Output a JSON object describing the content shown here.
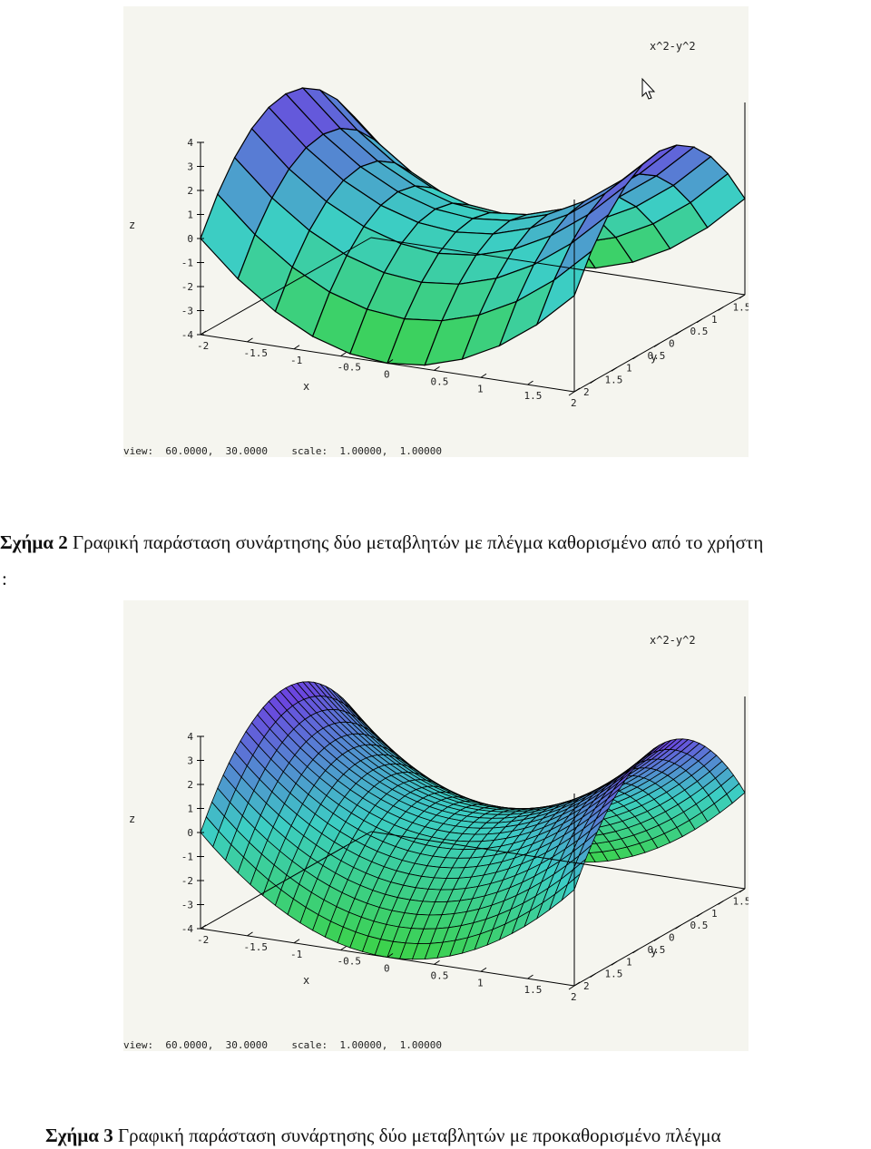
{
  "figures": [
    {
      "legend": "x^2-y^2",
      "zlabel": "z",
      "xlabel": "x",
      "ylabel": "y",
      "ztick_labels": [
        "4",
        "3",
        "2",
        "1",
        "0",
        "-1",
        "-2",
        "-3",
        "-4"
      ],
      "xtick_labels": [
        "-2",
        "-1.5",
        "-1",
        "-0.5",
        "0",
        "0.5",
        "1",
        "1.5",
        "2"
      ],
      "ytick_labels": [
        "2",
        "1.5",
        "1",
        "0.5",
        "0",
        "0.5",
        "1",
        "1.5",
        "2"
      ],
      "status": "view:  60.0000,  30.0000    scale:  1.00000,  1.00000",
      "grid_count": 11,
      "show_cursor": true
    },
    {
      "legend": "x^2-y^2",
      "zlabel": "z",
      "xlabel": "x",
      "ylabel": "y",
      "ztick_labels": [
        "4",
        "3",
        "2",
        "1",
        "0",
        "-1",
        "-2",
        "-3",
        "-4"
      ],
      "xtick_labels": [
        "-2",
        "-1.5",
        "-1",
        "-0.5",
        "0",
        "0.5",
        "1",
        "1.5",
        "2"
      ],
      "ytick_labels": [
        "2",
        "1.5",
        "1",
        "0.5",
        "0",
        "0.5",
        "1",
        "1.5",
        "2"
      ],
      "status": "view:  60.0000,  30.0000    scale:  1.00000,  1.00000",
      "grid_count": 31,
      "show_cursor": false
    }
  ],
  "captions": {
    "fig2_label": "Σχήμα 2",
    "fig2_text": " Γραφική παράσταση συνάρτησης δύο μεταβλητών με πλέγμα καθορισμένο από το χρήστη",
    "colon": ":",
    "fig3_label": "Σχήμα 3",
    "fig3_text": " Γραφική παράσταση συνάρτησης δύο μεταβλητών με προκαθορισμένο πλέγμα"
  },
  "chart_data": [
    {
      "type": "surface",
      "function": "x^2-y^2",
      "x_range": [
        -2,
        2
      ],
      "y_range": [
        -2,
        2
      ],
      "z_range": [
        -4,
        4
      ],
      "view": [
        60,
        30
      ],
      "scale": [
        1,
        1
      ],
      "grid": [
        11,
        11
      ]
    },
    {
      "type": "surface",
      "function": "x^2-y^2",
      "x_range": [
        -2,
        2
      ],
      "y_range": [
        -2,
        2
      ],
      "z_range": [
        -4,
        4
      ],
      "view": [
        60,
        30
      ],
      "scale": [
        1,
        1
      ],
      "grid": [
        31,
        31
      ]
    }
  ]
}
